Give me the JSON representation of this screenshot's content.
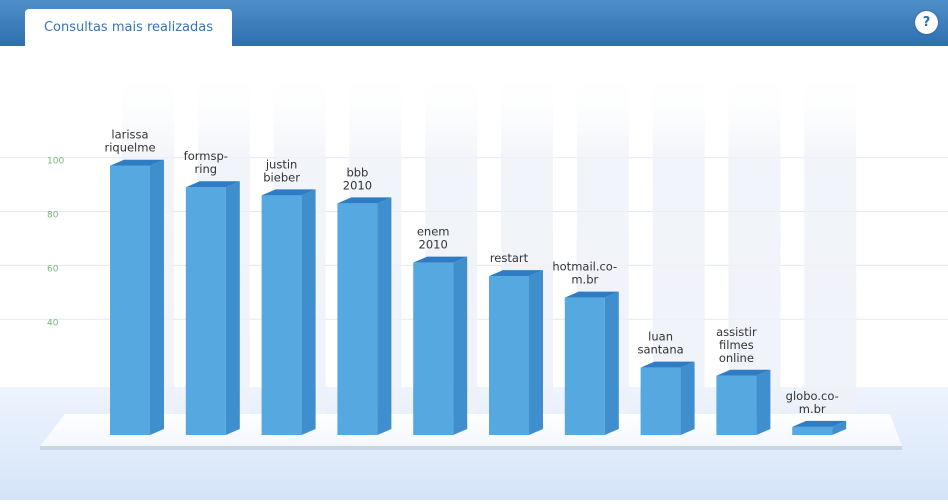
{
  "header": {
    "tab_label": "Consultas mais realizadas",
    "help_label": "?",
    "help_icon": "help-icon"
  },
  "chart_data": {
    "type": "bar",
    "categories": [
      [
        "larissa",
        "riquelme"
      ],
      [
        "formsp-",
        "ring"
      ],
      [
        "justin",
        "bieber"
      ],
      [
        "bbb",
        "2010"
      ],
      [
        "enem",
        "2010"
      ],
      [
        "restart"
      ],
      [
        "hotmail.co-",
        "m.br"
      ],
      [
        "luan",
        "santana"
      ],
      [
        "assistir",
        "filmes",
        "online"
      ],
      [
        "globo.co-",
        "m.br"
      ]
    ],
    "values": [
      100,
      92,
      89,
      86,
      64,
      59,
      51,
      25,
      22,
      3
    ],
    "y_ticks": [
      "100",
      "80",
      "60",
      "40"
    ],
    "y_tick_values": [
      100,
      80,
      60,
      40
    ],
    "ylim": [
      0,
      100
    ],
    "grid": true,
    "colors": {
      "bar_front": "#56a8e0",
      "bar_side": "#3f8fcf",
      "bar_top": "#2d7cc4",
      "gridline": "#dde9f5",
      "tick_label": "#7fb27f",
      "label": "#333333",
      "floor_bg": "#dfeafb",
      "base": "#ffffff"
    }
  }
}
